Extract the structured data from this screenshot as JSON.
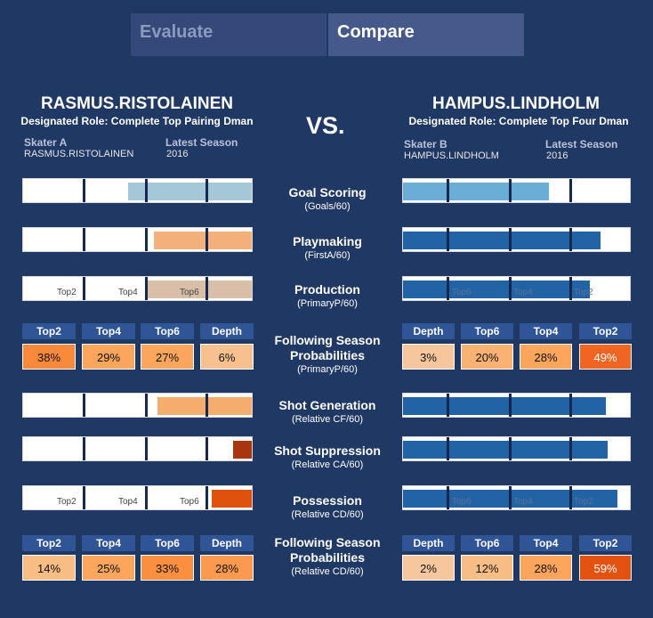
{
  "tabs": {
    "evaluate": "Evaluate",
    "compare": "Compare"
  },
  "vs": "VS.",
  "left": {
    "name": "RASMUS.RISTOLAINEN",
    "role": "Designated Role: Complete Top Pairing Dman",
    "skater_label": "Skater A",
    "skater": "RASMUS.RISTOLAINEN",
    "season_label": "Latest Season",
    "season": "2016"
  },
  "right": {
    "name": "HAMPUS.LINDHOLM",
    "role": "Designated Role: Complete Top Four Dman",
    "skater_label": "Skater B",
    "skater": "HAMPUS.LINDHOLM",
    "season_label": "Latest Season",
    "season": "2016"
  },
  "tick_labels": {
    "top2": "Top2",
    "top4": "Top4",
    "top6": "Top6"
  },
  "metrics": [
    {
      "title": "Goal Scoring",
      "sub": "(Goals/60)"
    },
    {
      "title": "Playmaking",
      "sub": "(FirstA/60)"
    },
    {
      "title": "Production",
      "sub": "(PrimaryP/60)"
    },
    {
      "title": "Following Season Probabilities",
      "sub": "(PrimaryP/60)"
    },
    {
      "title": "Shot Generation",
      "sub": "(Relative CF/60)"
    },
    {
      "title": "Shot Suppression",
      "sub": "(Relative CA/60)"
    },
    {
      "title": "Possession",
      "sub": "(Relative CD/60)"
    },
    {
      "title": "Following Season Probabilities",
      "sub": "(Relative CD/60)"
    }
  ],
  "left_probs_1": {
    "headers": [
      "Top2",
      "Top4",
      "Top6",
      "Depth"
    ],
    "values": [
      "38%",
      "29%",
      "27%",
      "6%"
    ]
  },
  "right_probs_1": {
    "headers": [
      "Depth",
      "Top6",
      "Top4",
      "Top2"
    ],
    "values": [
      "3%",
      "20%",
      "28%",
      "49%"
    ]
  },
  "left_probs_2": {
    "headers": [
      "Top2",
      "Top4",
      "Top6",
      "Depth"
    ],
    "values": [
      "14%",
      "25%",
      "33%",
      "28%"
    ]
  },
  "right_probs_2": {
    "headers": [
      "Depth",
      "Top6",
      "Top4",
      "Top2"
    ],
    "values": [
      "2%",
      "12%",
      "28%",
      "59%"
    ]
  },
  "colors": {
    "goal_left": "#a5c8d6",
    "play_left": "#f4b07a",
    "prod_left": "#d9bfa8",
    "shotgen_left": "#f5ad6d",
    "shotsup_left": "#a83410",
    "poss_left": "#e0510e",
    "goal_right": "#6aaed6",
    "blue_right": "#2163a5"
  }
}
